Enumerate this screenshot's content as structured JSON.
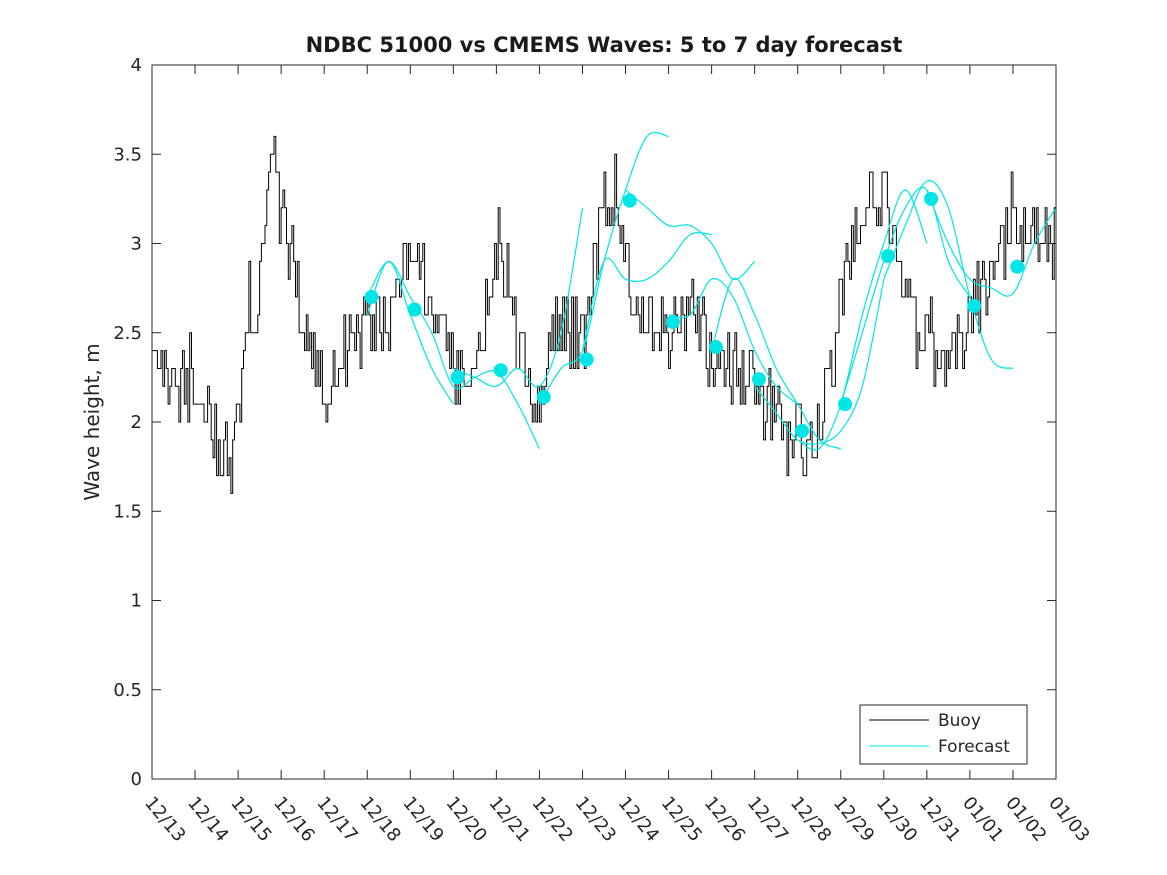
{
  "chart_data": {
    "type": "line",
    "title": "NDBC 51000 vs CMEMS Waves: 5 to 7 day forecast",
    "xlabel": "",
    "ylabel": "Wave height, m",
    "ylim": [
      0,
      4
    ],
    "yticks": [
      "0",
      "0.5",
      "1",
      "1.5",
      "2",
      "2.5",
      "3",
      "3.5",
      "4"
    ],
    "xlim_days": [
      0,
      21
    ],
    "xtick_labels": [
      "12/13",
      "12/14",
      "12/15",
      "12/16",
      "12/17",
      "12/18",
      "12/19",
      "12/20",
      "12/21",
      "12/22",
      "12/23",
      "12/24",
      "12/25",
      "12/26",
      "12/27",
      "12/28",
      "12/29",
      "12/30",
      "12/31",
      "01/01",
      "01/02",
      "01/03"
    ],
    "legend": {
      "location": "bottom-right",
      "entries": [
        "Buoy",
        "Forecast"
      ]
    },
    "colors": {
      "buoy": "#000000",
      "forecast": "#00e6e6"
    },
    "series": [
      {
        "name": "Buoy",
        "x": [
          0,
          0.25,
          0.5,
          0.75,
          1,
          1.25,
          1.5,
          1.75,
          2,
          2.25,
          2.5,
          2.75,
          3,
          3.25,
          3.5,
          3.75,
          4,
          4.25,
          4.5,
          4.75,
          5,
          5.25,
          5.5,
          5.75,
          6,
          6.25,
          6.5,
          6.75,
          7,
          7.25,
          7.5,
          7.75,
          8,
          8.25,
          8.5,
          8.75,
          9,
          9.25,
          9.5,
          9.75,
          10,
          10.25,
          10.5,
          10.75,
          11,
          11.25,
          11.5,
          11.75,
          12,
          12.25,
          12.5,
          12.75,
          13,
          13.25,
          13.5,
          13.75,
          14,
          14.25,
          14.5,
          14.75,
          15,
          15.25,
          15.5,
          15.75,
          16,
          16.25,
          16.5,
          16.75,
          17,
          17.25,
          17.5,
          17.75,
          18,
          18.25,
          18.5,
          18.75,
          19,
          19.25,
          19.5,
          19.75,
          20,
          20.25,
          20.5,
          20.75,
          21
        ],
        "values": [
          2.6,
          2.3,
          2.1,
          2.2,
          2.1,
          2.0,
          1.9,
          1.8,
          2.1,
          2.5,
          2.8,
          3.6,
          3.2,
          2.9,
          2.5,
          2.3,
          2.2,
          2.3,
          2.4,
          2.5,
          2.5,
          2.6,
          2.6,
          2.8,
          3.0,
          2.9,
          2.6,
          2.5,
          2.3,
          2.2,
          2.3,
          2.6,
          3.0,
          2.8,
          2.4,
          2.2,
          2.1,
          2.4,
          2.6,
          2.5,
          2.5,
          2.9,
          3.2,
          3.1,
          2.9,
          2.7,
          2.6,
          2.5,
          2.5,
          2.6,
          2.6,
          2.6,
          2.3,
          2.4,
          2.3,
          2.2,
          2.2,
          2.1,
          2.0,
          1.9,
          1.9,
          1.9,
          2.0,
          2.2,
          2.7,
          3.0,
          3.2,
          3.3,
          3.2,
          3.0,
          2.7,
          2.5,
          2.4,
          2.3,
          2.3,
          2.4,
          2.6,
          2.7,
          2.8,
          3.0,
          3.1,
          3.1,
          3.1,
          3.0,
          3.0
        ]
      },
      {
        "name": "Forecast",
        "segments": [
          {
            "x": [
              5,
              5.5,
              6,
              6.5,
              7
            ],
            "values": [
              2.6,
              2.9,
              2.6,
              2.3,
              2.1
            ]
          },
          {
            "x": [
              5,
              5.5,
              6,
              6.5,
              7,
              7.5,
              8,
              8.5,
              9
            ],
            "values": [
              2.7,
              2.9,
              2.7,
              2.5,
              2.2,
              2.25,
              2.28,
              2.1,
              1.85
            ]
          },
          {
            "x": [
              7,
              7.5,
              8,
              8.5,
              9,
              9.5,
              10
            ],
            "values": [
              2.3,
              2.25,
              2.2,
              2.3,
              2.2,
              2.5,
              3.2
            ]
          },
          {
            "x": [
              9,
              9.5,
              10,
              10.5,
              11,
              11.5,
              12
            ],
            "values": [
              2.1,
              2.3,
              2.4,
              2.9,
              3.3,
              3.6,
              3.6
            ]
          },
          {
            "x": [
              10,
              10.5,
              11,
              11.5,
              12,
              12.5,
              13
            ],
            "values": [
              2.4,
              2.9,
              2.8,
              2.8,
              2.9,
              3.05,
              3.05
            ]
          },
          {
            "x": [
              11,
              11.5,
              12,
              12.5,
              13,
              13.5,
              14
            ],
            "values": [
              3.3,
              3.2,
              3.1,
              3.1,
              3.0,
              2.8,
              2.9
            ]
          },
          {
            "x": [
              12,
              12.5,
              13,
              13.5,
              14,
              14.5,
              15
            ],
            "values": [
              2.6,
              2.6,
              2.8,
              2.7,
              2.4,
              2.2,
              2.1
            ]
          },
          {
            "x": [
              13,
              13.5,
              14,
              14.5,
              15,
              15.5,
              16
            ],
            "values": [
              2.4,
              2.8,
              2.6,
              2.3,
              2.1,
              1.9,
              1.85
            ]
          },
          {
            "x": [
              14,
              14.5,
              15,
              15.5,
              16,
              16.5,
              17
            ],
            "values": [
              2.2,
              2.05,
              1.9,
              1.88,
              1.95,
              2.2,
              2.8
            ]
          },
          {
            "x": [
              15,
              15.5,
              16,
              16.5,
              17,
              17.5,
              18
            ],
            "values": [
              1.9,
              1.85,
              2.1,
              2.6,
              3.0,
              3.3,
              3.0
            ]
          },
          {
            "x": [
              16,
              16.5,
              17,
              17.5,
              18,
              18.5,
              19
            ],
            "values": [
              2.1,
              2.5,
              2.9,
              3.2,
              3.3,
              2.9,
              2.7
            ]
          },
          {
            "x": [
              17,
              17.5,
              18,
              18.5,
              19,
              19.5,
              20
            ],
            "values": [
              2.8,
              3.1,
              3.35,
              3.2,
              2.7,
              2.35,
              2.3
            ]
          },
          {
            "x": [
              18,
              18.5,
              19,
              19.5,
              20,
              20.5,
              21
            ],
            "values": [
              3.3,
              3.0,
              2.8,
              2.75,
              2.72,
              3.0,
              3.2
            ]
          }
        ],
        "markers": {
          "x": [
            5,
            6,
            7,
            8,
            9,
            10,
            11,
            12,
            13,
            14,
            15,
            16,
            17,
            18,
            19,
            20
          ],
          "values": [
            2.7,
            2.63,
            2.25,
            2.29,
            2.14,
            2.35,
            3.24,
            2.56,
            2.42,
            2.24,
            1.95,
            2.1,
            2.93,
            3.25,
            2.65,
            2.87
          ]
        }
      }
    ]
  }
}
